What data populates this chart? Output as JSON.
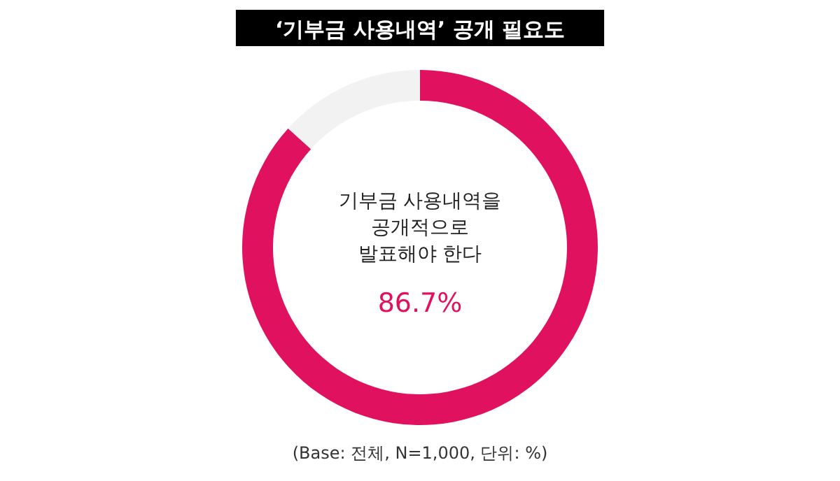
{
  "chart_data": {
    "type": "donut",
    "title": "‘기부금 사용내역’ 공개 필요도",
    "categories": [
      "기부금 사용내역을 공개적으로 발표해야 한다",
      null
    ],
    "values": [
      86.7,
      13.3
    ],
    "colors": [
      "#e0125f",
      "#f2f2f2"
    ],
    "value_labels": [
      "86.7%",
      null
    ],
    "annotations": [
      "(Base: 전체, N=1,000, 단위: %)"
    ]
  }
}
